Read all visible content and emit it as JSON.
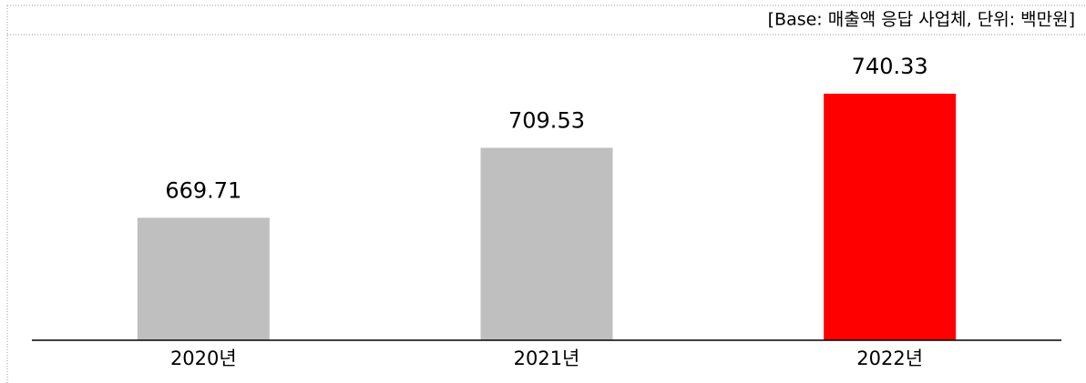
{
  "chart_data": {
    "type": "bar",
    "note": "[Base: 매출액 응답 사업체, 단위: 백만원]",
    "categories": [
      "2020년",
      "2021년",
      "2022년"
    ],
    "values": [
      669.71,
      709.53,
      740.33
    ],
    "colors": [
      "#bfbfbf",
      "#bfbfbf",
      "#ff0000"
    ],
    "ylim": [
      600,
      760
    ]
  }
}
